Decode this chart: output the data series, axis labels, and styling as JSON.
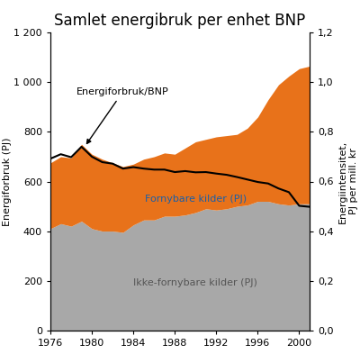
{
  "title": "Samlet energibruk per enhet BNP",
  "ylabel_left": "Energiforbruk (PJ)",
  "ylabel_right": "Energiintensitet,\nPJ per mill. kr",
  "years": [
    1976,
    1977,
    1978,
    1979,
    1980,
    1981,
    1982,
    1983,
    1984,
    1985,
    1986,
    1987,
    1988,
    1989,
    1990,
    1991,
    1992,
    1993,
    1994,
    1995,
    1996,
    1997,
    1998,
    1999,
    2000,
    2001
  ],
  "ikke_fornybare": [
    410,
    430,
    420,
    440,
    410,
    400,
    400,
    395,
    425,
    445,
    445,
    460,
    460,
    465,
    475,
    490,
    485,
    490,
    500,
    505,
    520,
    520,
    510,
    505,
    510,
    510
  ],
  "fornybare": [
    265,
    270,
    275,
    310,
    300,
    290,
    275,
    265,
    245,
    245,
    255,
    255,
    250,
    270,
    285,
    280,
    295,
    295,
    290,
    310,
    340,
    410,
    480,
    520,
    545,
    555
  ],
  "energi_bnp": [
    0.692,
    0.71,
    0.698,
    0.74,
    0.7,
    0.678,
    0.672,
    0.652,
    0.658,
    0.652,
    0.648,
    0.648,
    0.638,
    0.642,
    0.637,
    0.638,
    0.632,
    0.627,
    0.618,
    0.608,
    0.598,
    0.592,
    0.572,
    0.557,
    0.502,
    0.498
  ],
  "color_ikke_fornybare": "#a8a8a8",
  "color_fornybare": "#e8721a",
  "color_line": "#000000",
  "ylim_left": [
    0,
    1200
  ],
  "ylim_right": [
    0.0,
    1.2
  ],
  "yticks_left": [
    0,
    200,
    400,
    600,
    800,
    1000,
    1200
  ],
  "yticks_right": [
    0.0,
    0.2,
    0.4,
    0.6,
    0.8,
    1.0,
    1.2
  ],
  "xticks": [
    1976,
    1980,
    1984,
    1988,
    1992,
    1996,
    2000
  ],
  "annotation_text": "Energiforbruk/BNP",
  "label_fornybare": "Fornybare kilder (PJ)",
  "label_ikke_fornybare": "Ikke-fornybare kilder (PJ)",
  "label_fornybare_color": "#1a5fa8",
  "label_ikke_fornybare_color": "#555555",
  "background_color": "#ffffff"
}
